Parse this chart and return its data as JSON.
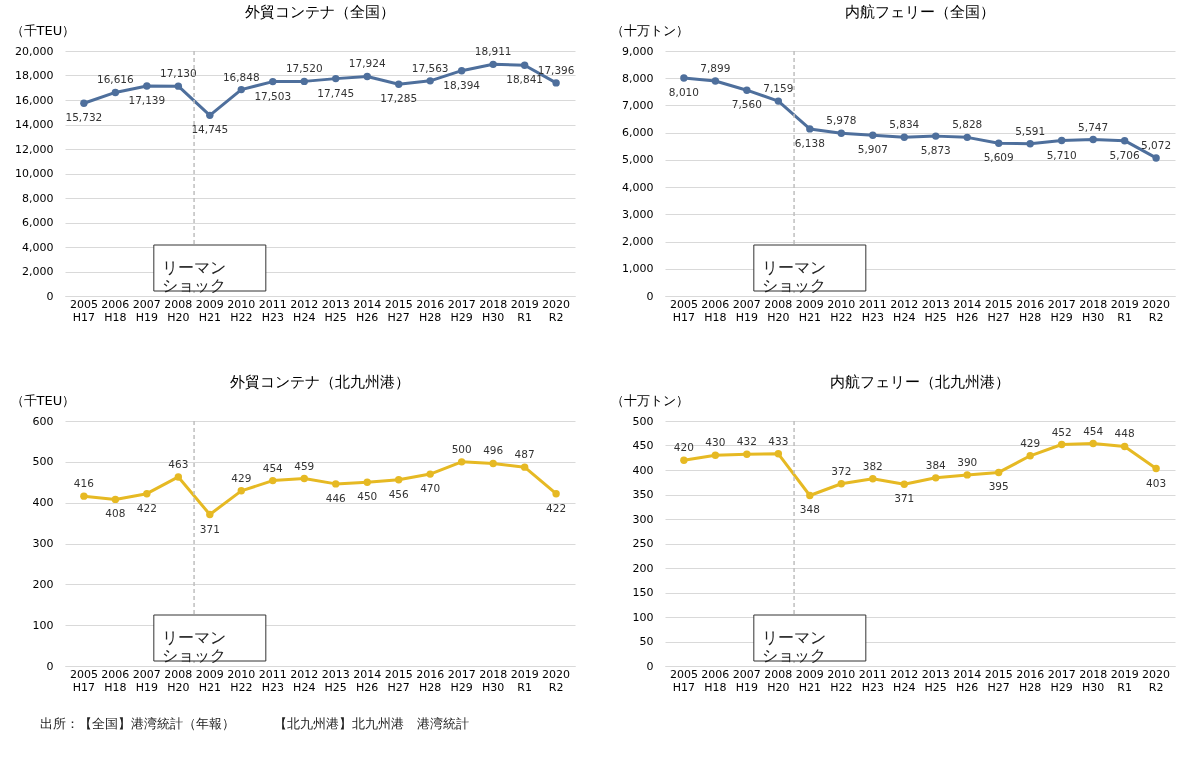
{
  "chart_data": [
    {
      "type": "line",
      "title": "外貿コンテナ（全国）",
      "ylabel": "（千TEU）",
      "categories": [
        "2005\nH17",
        "2006\nH18",
        "2007\nH19",
        "2008\nH20",
        "2009\nH21",
        "2010\nH22",
        "2011\nH23",
        "2012\nH24",
        "2013\nH25",
        "2014\nH26",
        "2015\nH27",
        "2016\nH28",
        "2017\nH29",
        "2018\nH30",
        "2019\nR1",
        "2020\nR2"
      ],
      "series": [
        {
          "color": "#4e6f9c",
          "values": [
            15732,
            16616,
            17139,
            17130,
            14745,
            16848,
            17503,
            17520,
            17745,
            17924,
            17285,
            17563,
            18394,
            18911,
            18841,
            17396
          ],
          "value_labels": [
            "15,732",
            "16,616",
            "17,139",
            "17,130",
            "14,745",
            "16,848",
            "17,503",
            "17,520",
            "17,745",
            "17,924",
            "17,285",
            "17,563",
            "18,394",
            "18,911",
            "18,841",
            "17,396"
          ]
        }
      ],
      "ylim": [
        0,
        20000
      ],
      "yticks": [
        0,
        {
          "value": 2000,
          "label": "2,000"
        },
        {
          "value": 4000,
          "label": "4,000"
        },
        {
          "value": 6000,
          "label": "6,000"
        },
        {
          "value": 8000,
          "label": "8,000"
        },
        {
          "value": 10000,
          "label": "10,000"
        },
        {
          "value": 12000,
          "label": "12,000"
        },
        {
          "value": 14000,
          "label": "14,000"
        },
        {
          "value": 16000,
          "label": "16,000"
        },
        {
          "value": 18000,
          "label": "18,000"
        },
        {
          "value": 20000,
          "label": "20,000"
        }
      ],
      "grid": "y",
      "marker": "circle",
      "ref_lines": [
        {
          "axis": "x",
          "value": "2009\nH21",
          "label": "リーマンショック",
          "color": "#bfbfbf",
          "line_style": "dashed"
        }
      ]
    },
    {
      "type": "line",
      "title": "内航フェリー（全国）",
      "ylabel": "（十万トン）",
      "categories": [
        "2005\nH17",
        "2006\nH18",
        "2007\nH19",
        "2008\nH20",
        "2009\nH21",
        "2010\nH22",
        "2011\nH23",
        "2012\nH24",
        "2013\nH25",
        "2014\nH26",
        "2015\nH27",
        "2016\nH28",
        "2017\nH29",
        "2018\nH30",
        "2019\nR1",
        "2020\nR2"
      ],
      "series": [
        {
          "color": "#4e6f9c",
          "values": [
            8010,
            7899,
            7560,
            7159,
            6138,
            5978,
            5907,
            5834,
            5873,
            5828,
            5609,
            5591,
            5710,
            5747,
            5706,
            5072
          ],
          "value_labels": [
            "8,010",
            "7,899",
            "7,560",
            "7,159",
            "6,138",
            "5,978",
            "5,907",
            "5,834",
            "5,873",
            "5,828",
            "5,609",
            "5,591",
            "5,710",
            "5,747",
            "5,706",
            "5,072"
          ]
        }
      ],
      "ylim": [
        0,
        9000
      ],
      "yticks": [
        0,
        {
          "value": 1000,
          "label": "1,000"
        },
        {
          "value": 2000,
          "label": "2,000"
        },
        {
          "value": 3000,
          "label": "3,000"
        },
        {
          "value": 4000,
          "label": "4,000"
        },
        {
          "value": 5000,
          "label": "5,000"
        },
        {
          "value": 6000,
          "label": "6,000"
        },
        {
          "value": 7000,
          "label": "7,000"
        },
        {
          "value": 8000,
          "label": "8,000"
        },
        {
          "value": 9000,
          "label": "9,000"
        }
      ],
      "grid": "y",
      "marker": "circle",
      "ref_lines": [
        {
          "axis": "x",
          "value": "2009\nH21",
          "label": "リーマンショック",
          "color": "#bfbfbf",
          "line_style": "dashed"
        }
      ]
    },
    {
      "type": "line",
      "title": "外貿コンテナ（北九州港）",
      "ylabel": "（千TEU）",
      "categories": [
        "2005\nH17",
        "2006\nH18",
        "2007\nH19",
        "2008\nH20",
        "2009\nH21",
        "2010\nH22",
        "2011\nH23",
        "2012\nH24",
        "2013\nH25",
        "2014\nH26",
        "2015\nH27",
        "2016\nH28",
        "2017\nH29",
        "2018\nH30",
        "2019\nR1",
        "2020\nR2"
      ],
      "series": [
        {
          "color": "#e6b923",
          "values": [
            416,
            408,
            422,
            463,
            371,
            429,
            454,
            459,
            446,
            450,
            456,
            470,
            500,
            496,
            487,
            422
          ]
        }
      ],
      "ylim": [
        0,
        600
      ],
      "yticks": [
        0,
        100,
        200,
        300,
        400,
        500,
        600
      ],
      "grid": "y",
      "marker": "circle",
      "data_labels": true,
      "ref_lines": [
        {
          "axis": "x",
          "value": "2009\nH21",
          "label": "リーマンショック",
          "color": "#bfbfbf",
          "line_style": "dashed"
        }
      ],
      "annotations": [
        "出所：【全国】港湾統計（年報）　　　【北九州港】北九州港　港湾統計"
      ]
    },
    {
      "type": "line",
      "title": "内航フェリー（北九州港）",
      "ylabel": "（十万トン）",
      "categories": [
        "2005\nH17",
        "2006\nH18",
        "2007\nH19",
        "2008\nH20",
        "2009\nH21",
        "2010\nH22",
        "2011\nH23",
        "2012\nH24",
        "2013\nH25",
        "2014\nH26",
        "2015\nH27",
        "2016\nH28",
        "2017\nH29",
        "2018\nH30",
        "2019\nR1",
        "2020\nR2"
      ],
      "series": [
        {
          "color": "#e6b923",
          "values": [
            420,
            430,
            432,
            433,
            348,
            372,
            382,
            371,
            384,
            390,
            395,
            429,
            452,
            454,
            448,
            403
          ]
        }
      ],
      "ylim": [
        0,
        500
      ],
      "yticks": [
        0,
        50,
        100,
        150,
        200,
        250,
        300,
        350,
        400,
        450,
        500
      ],
      "grid": "y",
      "marker": "circle",
      "data_labels": true,
      "ref_lines": [
        {
          "axis": "x",
          "value": "2009\nH21",
          "label": "リーマンショック",
          "color": "#bfbfbf",
          "line_style": "dashed"
        }
      ]
    }
  ]
}
